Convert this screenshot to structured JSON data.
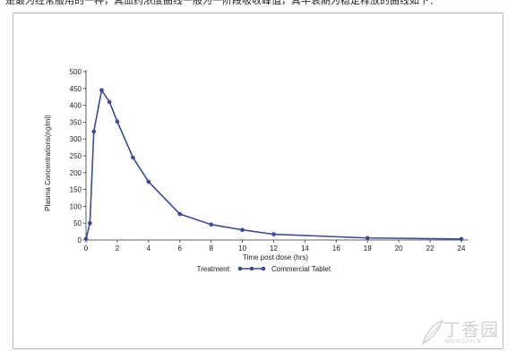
{
  "header_text": "是最为经常服用的一种，其血药浓度曲线一般为一阶段吸收峰值，其半衰期为稳定释放的曲线如下：",
  "chart_data": {
    "type": "line",
    "title": "",
    "xlabel": "Time post dose (hrs)",
    "ylabel": "Plasma Concentrations(ng/ml)",
    "xlim": [
      0,
      24
    ],
    "ylim": [
      0,
      500
    ],
    "x_ticks": [
      0,
      2,
      4,
      6,
      8,
      10,
      12,
      14,
      16,
      18,
      20,
      22,
      24
    ],
    "y_ticks": [
      0,
      50,
      100,
      150,
      200,
      250,
      300,
      350,
      400,
      450,
      500
    ],
    "grid": false,
    "legend": {
      "title": "Treatment:",
      "placement": "bottom"
    },
    "series": [
      {
        "name": "Commercial Tablet",
        "color": "#3a4a9a",
        "marker": "circle",
        "x": [
          0,
          0.25,
          0.5,
          1,
          1.5,
          2,
          3,
          4,
          6,
          8,
          10,
          12,
          18,
          24
        ],
        "y": [
          3,
          50,
          322,
          445,
          410,
          352,
          245,
          173,
          77,
          46,
          30,
          17,
          6,
          3
        ]
      }
    ]
  },
  "watermark": {
    "main": "丁香园",
    "sub": "WWW.DXY.CN"
  }
}
